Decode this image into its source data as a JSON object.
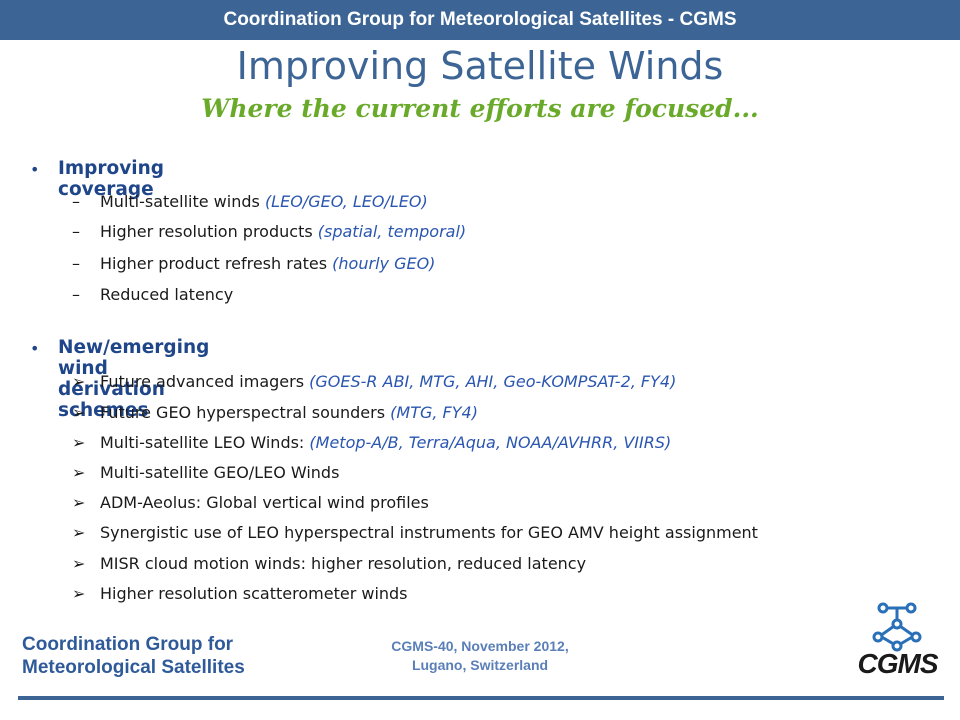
{
  "header": {
    "banner": "Coordination Group for Meteorological Satellites - CGMS"
  },
  "slide": {
    "title": "Improving Satellite Winds",
    "subtitle": "Where the current efforts are focused..."
  },
  "sections": [
    {
      "heading": "Improving coverage",
      "marker": "–",
      "items": [
        {
          "text": "Multi-satellite winds ",
          "note": "(LEO/GEO, LEO/LEO)"
        },
        {
          "text": "Higher resolution products ",
          "note": "(spatial, temporal)"
        },
        {
          "text": "Higher product refresh rates ",
          "note": "(hourly GEO)"
        },
        {
          "text": "Reduced latency",
          "note": ""
        }
      ]
    },
    {
      "heading": "New/emerging wind derivation schemes",
      "marker": "➢",
      "items": [
        {
          "text": "Future advanced imagers ",
          "note": "(GOES-R ABI, MTG, AHI, Geo-KOMPSAT-2, FY4)"
        },
        {
          "text": "Future GEO hyperspectral sounders ",
          "note": "(MTG, FY4)"
        },
        {
          "text": "Multi-satellite LEO Winds: ",
          "note": "(Metop-A/B, Terra/Aqua, NOAA/AVHRR, VIIRS)"
        },
        {
          "text": "Multi-satellite GEO/LEO Winds",
          "note": ""
        },
        {
          "text": "ADM-Aeolus: Global vertical wind profiles",
          "note": ""
        },
        {
          "text": "Synergistic use of LEO hyperspectral instruments for GEO AMV height assignment",
          "note": ""
        },
        {
          "text": "MISR cloud motion winds: higher resolution, reduced latency",
          "note": ""
        },
        {
          "text": "Higher resolution scatterometer winds",
          "note": ""
        }
      ]
    }
  ],
  "footer": {
    "logo_line1": "Coordination Group for",
    "logo_line2": "Meteorological Satellites",
    "meta_line1": "CGMS-40, November 2012,",
    "meta_line2": "Lugano, Switzerland",
    "brand": "CGMS"
  },
  "colors": {
    "banner_bg": "#3c6596",
    "title": "#3c6596",
    "subtitle": "#6aaa2a",
    "heading": "#20468a",
    "note": "#2a56b0",
    "brand_icon": "#2a70b8"
  }
}
